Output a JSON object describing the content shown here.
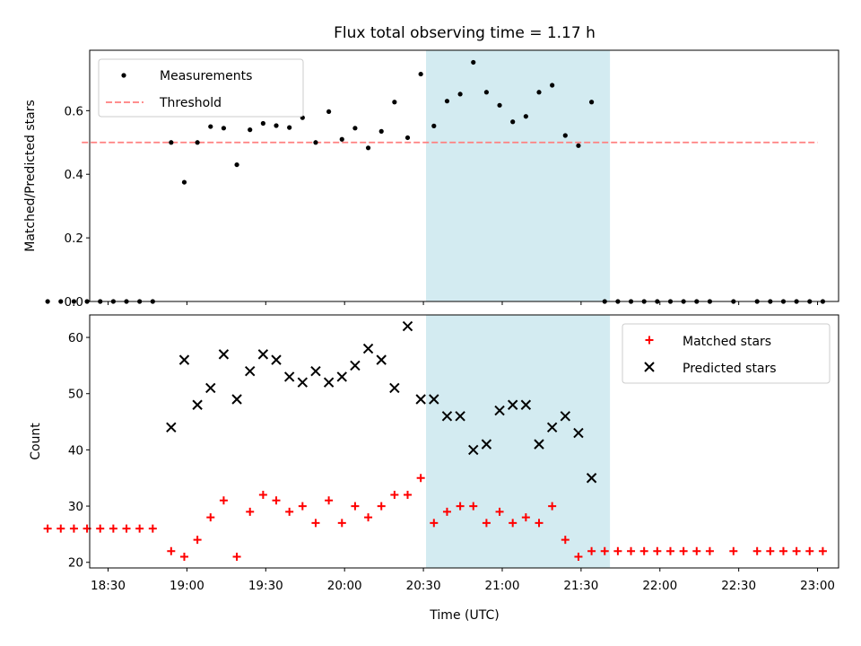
{
  "chart_data": {
    "type": "scatter",
    "title": "Flux total observing time = 1.17 h",
    "xlabel": "Time (UTC)",
    "x_ticks": [
      "18:30",
      "19:00",
      "19:30",
      "20:00",
      "20:30",
      "21:00",
      "21:30",
      "22:00",
      "22:30",
      "23:00"
    ],
    "x_range_min": [
      1103,
      1388
    ],
    "highlight_span_min": [
      1231,
      1301
    ],
    "colors": {
      "highlight": "#d3ebf1",
      "threshold": "#ff7f7f",
      "matched": "#ff0000",
      "predicted": "#000000",
      "measurement": "#000000"
    },
    "top": {
      "ylabel": "Matched/Predicted stars",
      "ylim": [
        0,
        0.79
      ],
      "y_ticks": [
        "0.0",
        "0.2",
        "0.4",
        "0.6"
      ],
      "y_tick_values": [
        0,
        0.2,
        0.4,
        0.6
      ],
      "threshold": {
        "value": 0.5,
        "x_min": [
          1100,
          1380
        ]
      },
      "legend": [
        {
          "label": "Measurements"
        },
        {
          "label": "Threshold"
        }
      ],
      "measurements": {
        "x_min": [
          1087,
          1092,
          1097,
          1102,
          1107,
          1112,
          1117,
          1122,
          1127,
          1134,
          1139,
          1144,
          1149,
          1154,
          1159,
          1164,
          1169,
          1174,
          1179,
          1184,
          1189,
          1194,
          1199,
          1204,
          1209,
          1214,
          1219,
          1224,
          1229,
          1234,
          1239,
          1244,
          1249,
          1254,
          1259,
          1264,
          1269,
          1274,
          1279,
          1284,
          1289,
          1294,
          1299,
          1304,
          1309,
          1314,
          1319,
          1324,
          1329,
          1334,
          1339,
          1348,
          1357,
          1362,
          1367,
          1372,
          1377,
          1382
        ],
        "values": [
          0,
          0,
          0,
          0,
          0,
          0,
          0,
          0,
          0,
          0.5,
          0.375,
          0.5,
          0.55,
          0.545,
          0.43,
          0.54,
          0.56,
          0.553,
          0.547,
          0.578,
          0.5,
          0.597,
          0.51,
          0.545,
          0.483,
          0.535,
          0.627,
          0.515,
          0.715,
          0.552,
          0.63,
          0.652,
          0.752,
          0.658,
          0.617,
          0.565,
          0.582,
          0.658,
          0.68,
          0.522,
          0.49,
          0.627,
          0,
          0,
          0,
          0,
          0,
          0,
          0,
          0,
          0,
          0,
          0,
          0,
          0,
          0,
          0,
          0
        ]
      }
    },
    "bottom": {
      "ylabel": "Count",
      "ylim": [
        19,
        64
      ],
      "y_ticks": [
        "20",
        "30",
        "40",
        "50",
        "60"
      ],
      "y_tick_values": [
        20,
        30,
        40,
        50,
        60
      ],
      "legend": [
        {
          "label": "Matched stars"
        },
        {
          "label": "Predicted stars"
        }
      ],
      "matched": {
        "name": "Matched stars",
        "x_min": [
          1087,
          1092,
          1097,
          1102,
          1107,
          1112,
          1117,
          1122,
          1127,
          1134,
          1139,
          1144,
          1149,
          1154,
          1159,
          1164,
          1169,
          1174,
          1179,
          1184,
          1189,
          1194,
          1199,
          1204,
          1209,
          1214,
          1219,
          1224,
          1229,
          1234,
          1239,
          1244,
          1249,
          1254,
          1259,
          1264,
          1269,
          1274,
          1279,
          1284,
          1289,
          1294,
          1299,
          1304,
          1309,
          1314,
          1319,
          1324,
          1329,
          1334,
          1339,
          1348,
          1357,
          1362,
          1367,
          1372,
          1377,
          1382
        ],
        "values": [
          26,
          26,
          26,
          26,
          26,
          26,
          26,
          26,
          26,
          22,
          21,
          24,
          28,
          31,
          21,
          29,
          32,
          31,
          29,
          30,
          27,
          31,
          27,
          30,
          28,
          30,
          32,
          32,
          35,
          27,
          29,
          30,
          30,
          27,
          29,
          27,
          28,
          27,
          30,
          24,
          21,
          22,
          22,
          22,
          22,
          22,
          22,
          22,
          22,
          22,
          22,
          22,
          22,
          22,
          22,
          22,
          22,
          22
        ]
      },
      "predicted": {
        "name": "Predicted stars",
        "x_min": [
          1134,
          1139,
          1144,
          1149,
          1154,
          1159,
          1164,
          1169,
          1174,
          1179,
          1184,
          1189,
          1194,
          1199,
          1204,
          1209,
          1214,
          1219,
          1224,
          1229,
          1234,
          1239,
          1244,
          1249,
          1254,
          1259,
          1264,
          1269,
          1274,
          1279,
          1284,
          1289,
          1294
        ],
        "values": [
          44,
          56,
          48,
          51,
          57,
          49,
          54,
          57,
          56,
          53,
          52,
          54,
          52,
          53,
          55,
          58,
          56,
          51,
          62,
          49,
          49,
          46,
          46,
          40,
          41,
          47,
          48,
          48,
          41,
          44,
          46,
          43,
          35
        ]
      }
    }
  }
}
